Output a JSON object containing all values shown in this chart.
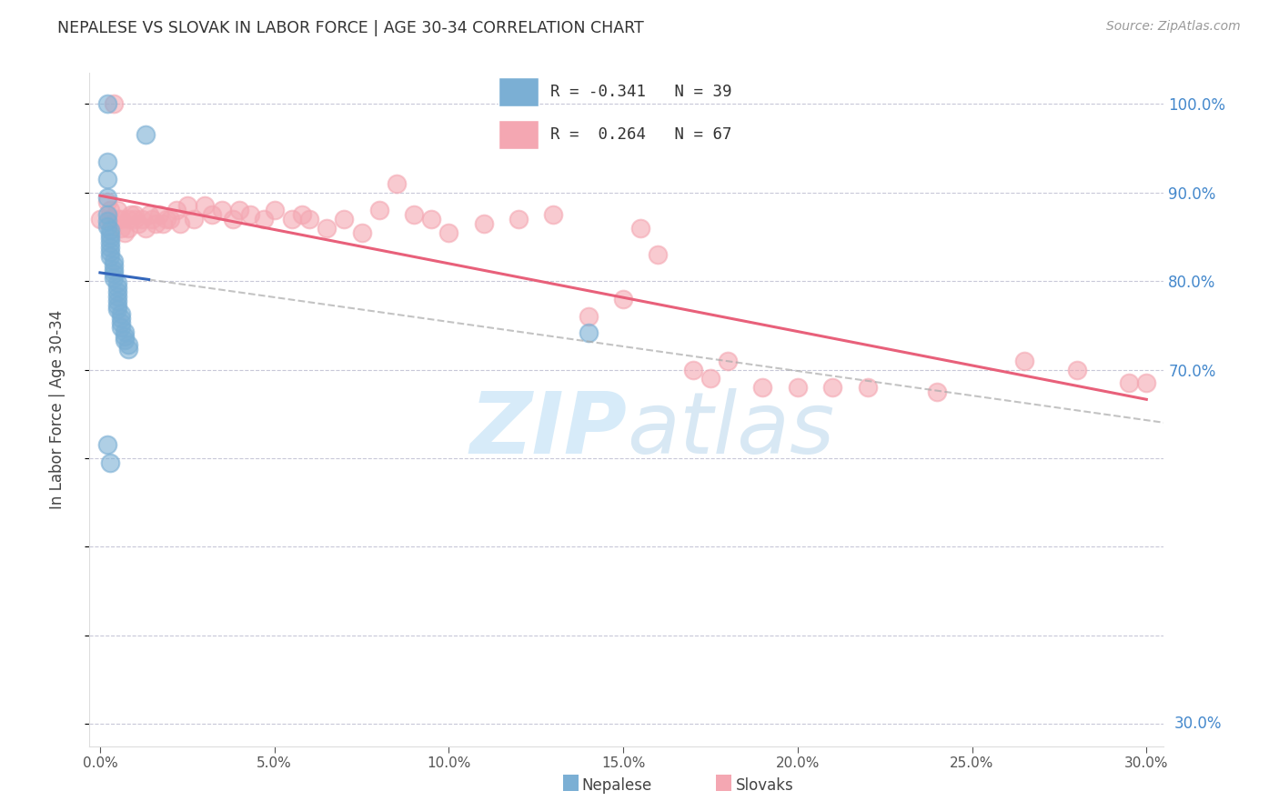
{
  "title": "NEPALESE VS SLOVAK IN LABOR FORCE | AGE 30-34 CORRELATION CHART",
  "source": "Source: ZipAtlas.com",
  "ylabel": "In Labor Force | Age 30-34",
  "nepalese_R": -0.341,
  "nepalese_N": 39,
  "slovak_R": 0.264,
  "slovak_N": 67,
  "nepalese_color": "#7BAFD4",
  "slovak_color": "#F4A7B2",
  "nepalese_line_color": "#3366BB",
  "slovak_line_color": "#E8607A",
  "background_color": "#FFFFFF",
  "grid_color": "#C8C8D8",
  "xlim": [
    -0.003,
    0.305
  ],
  "ylim": [
    0.275,
    1.035
  ],
  "nepalese_x": [
    0.002,
    0.013,
    0.002,
    0.002,
    0.002,
    0.002,
    0.002,
    0.002,
    0.003,
    0.003,
    0.003,
    0.003,
    0.003,
    0.003,
    0.003,
    0.004,
    0.004,
    0.004,
    0.004,
    0.004,
    0.005,
    0.005,
    0.005,
    0.005,
    0.005,
    0.005,
    0.005,
    0.006,
    0.006,
    0.006,
    0.006,
    0.007,
    0.007,
    0.007,
    0.008,
    0.008,
    0.14,
    0.002,
    0.003
  ],
  "nepalese_y": [
    1.0,
    0.965,
    0.935,
    0.915,
    0.895,
    0.875,
    0.868,
    0.862,
    0.858,
    0.853,
    0.848,
    0.843,
    0.838,
    0.833,
    0.828,
    0.823,
    0.818,
    0.813,
    0.808,
    0.803,
    0.798,
    0.793,
    0.788,
    0.783,
    0.778,
    0.773,
    0.768,
    0.763,
    0.758,
    0.753,
    0.748,
    0.743,
    0.738,
    0.733,
    0.728,
    0.723,
    0.742,
    0.615,
    0.595
  ],
  "slovak_x": [
    0.0,
    0.002,
    0.003,
    0.003,
    0.004,
    0.005,
    0.005,
    0.006,
    0.006,
    0.007,
    0.008,
    0.008,
    0.009,
    0.01,
    0.01,
    0.011,
    0.012,
    0.013,
    0.014,
    0.015,
    0.016,
    0.017,
    0.018,
    0.019,
    0.02,
    0.022,
    0.023,
    0.025,
    0.027,
    0.03,
    0.032,
    0.035,
    0.038,
    0.04,
    0.043,
    0.047,
    0.05,
    0.055,
    0.058,
    0.06,
    0.065,
    0.07,
    0.075,
    0.08,
    0.085,
    0.09,
    0.095,
    0.1,
    0.11,
    0.12,
    0.13,
    0.14,
    0.15,
    0.155,
    0.16,
    0.17,
    0.175,
    0.18,
    0.19,
    0.2,
    0.21,
    0.22,
    0.24,
    0.265,
    0.28,
    0.295,
    0.3
  ],
  "slovak_y": [
    0.87,
    0.89,
    0.88,
    0.87,
    1.0,
    0.88,
    0.87,
    0.87,
    0.86,
    0.855,
    0.87,
    0.86,
    0.875,
    0.875,
    0.87,
    0.865,
    0.87,
    0.86,
    0.875,
    0.87,
    0.865,
    0.875,
    0.865,
    0.87,
    0.87,
    0.88,
    0.865,
    0.885,
    0.87,
    0.885,
    0.875,
    0.88,
    0.87,
    0.88,
    0.875,
    0.87,
    0.88,
    0.87,
    0.875,
    0.87,
    0.86,
    0.87,
    0.855,
    0.88,
    0.91,
    0.875,
    0.87,
    0.855,
    0.865,
    0.87,
    0.875,
    0.76,
    0.78,
    0.86,
    0.83,
    0.7,
    0.69,
    0.71,
    0.68,
    0.68,
    0.68,
    0.68,
    0.675,
    0.71,
    0.7,
    0.685,
    0.685
  ]
}
